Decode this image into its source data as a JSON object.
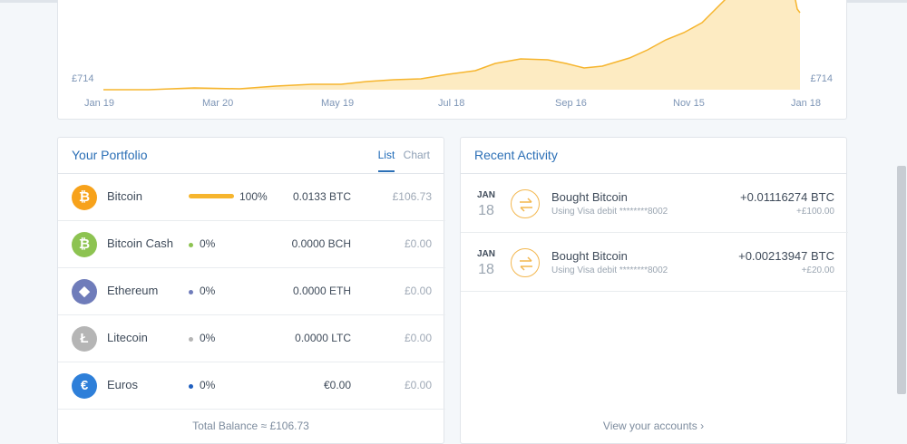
{
  "chart": {
    "price_left": "£714",
    "price_right": "£714",
    "x_labels": [
      "Jan 19",
      "Mar 20",
      "May 19",
      "Jul 18",
      "Sep 16",
      "Nov 15",
      "Jan 18"
    ],
    "fill_color": "#fdebc2",
    "line_color": "#f6b52e"
  },
  "portfolio": {
    "title": "Your Portfolio",
    "tab_list": "List",
    "tab_chart": "Chart",
    "assets": [
      {
        "name": "Bitcoin",
        "pct": "100%",
        "amount": "0.0133 BTC",
        "value": "£106.73",
        "symbol": "₿",
        "color": "#f7a21b",
        "icon": "bitcoin-icon",
        "share": 1.0
      },
      {
        "name": "Bitcoin Cash",
        "pct": "0%",
        "amount": "0.0000 BCH",
        "value": "£0.00",
        "symbol": "₿",
        "color": "#8dc351",
        "icon": "bitcoin-cash-icon",
        "share": 0
      },
      {
        "name": "Ethereum",
        "pct": "0%",
        "amount": "0.0000 ETH",
        "value": "£0.00",
        "symbol": "◆",
        "color": "#6f7cba",
        "icon": "ethereum-icon",
        "share": 0
      },
      {
        "name": "Litecoin",
        "pct": "0%",
        "amount": "0.0000 LTC",
        "value": "£0.00",
        "symbol": "Ł",
        "color": "#b5b5b5",
        "icon": "litecoin-icon",
        "share": 0
      },
      {
        "name": "Euros",
        "pct": "0%",
        "amount": "€0.00",
        "value": "£0.00",
        "symbol": "€",
        "color": "#2e7fd9",
        "icon": "euro-icon",
        "share": 0
      }
    ],
    "dot_colors": [
      "#8dc351",
      "#6f7cba",
      "#b5b5b5",
      "#1f5fbf"
    ],
    "total": "Total Balance ≈ £106.73"
  },
  "activity": {
    "title": "Recent Activity",
    "items": [
      {
        "month": "JAN",
        "day": "18",
        "title": "Bought Bitcoin",
        "sub": "Using Visa debit ********8002",
        "amount": "+0.01116274 BTC",
        "fiat": "+£100.00"
      },
      {
        "month": "JAN",
        "day": "18",
        "title": "Bought Bitcoin",
        "sub": "Using Visa debit ********8002",
        "amount": "+0.00213947 BTC",
        "fiat": "+£20.00"
      }
    ],
    "view_accounts": "View your accounts ›"
  }
}
